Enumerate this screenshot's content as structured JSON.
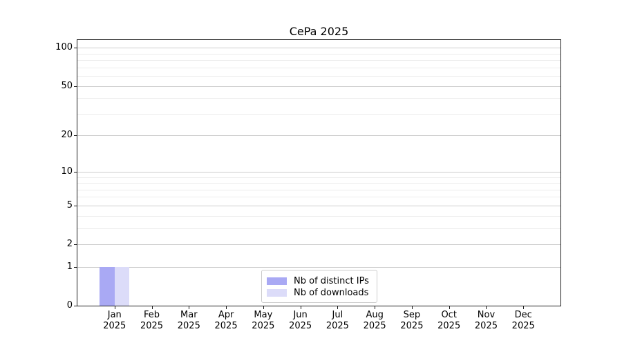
{
  "title": "CePa 2025",
  "legend": {
    "items": [
      {
        "label": "Nb of distinct IPs",
        "color": "#a9a9f4"
      },
      {
        "label": "Nb of downloads",
        "color": "#dcdcf9"
      }
    ]
  },
  "chart_data": {
    "type": "bar",
    "title": "CePa 2025",
    "categories": [
      "Jan 2025",
      "Feb 2025",
      "Mar 2025",
      "Apr 2025",
      "May 2025",
      "Jun 2025",
      "Jul 2025",
      "Aug 2025",
      "Sep 2025",
      "Oct 2025",
      "Nov 2025",
      "Dec 2025"
    ],
    "series": [
      {
        "name": "Nb of distinct IPs",
        "color": "#a9a9f4",
        "values": [
          1,
          0,
          0,
          0,
          0,
          0,
          0,
          0,
          0,
          0,
          0,
          0
        ]
      },
      {
        "name": "Nb of downloads",
        "color": "#dcdcf9",
        "values": [
          1,
          0,
          0,
          0,
          0,
          0,
          0,
          0,
          0,
          0,
          0,
          0
        ]
      }
    ],
    "xlabel": "",
    "ylabel": "",
    "yscale": "log1p",
    "ylim": [
      0,
      115
    ],
    "y_major_ticks": [
      0,
      1,
      2,
      5,
      10,
      20,
      50,
      100
    ],
    "y_minor_gridlines": [
      3,
      4,
      6,
      7,
      8,
      9,
      30,
      40,
      60,
      70,
      80,
      90
    ],
    "grid": true,
    "legend_position": "inside lower center"
  },
  "colors": {
    "major_grid": "#cccccc",
    "minor_grid": "#ececec",
    "spine": "#1a1a1a",
    "background": "#ffffff"
  }
}
